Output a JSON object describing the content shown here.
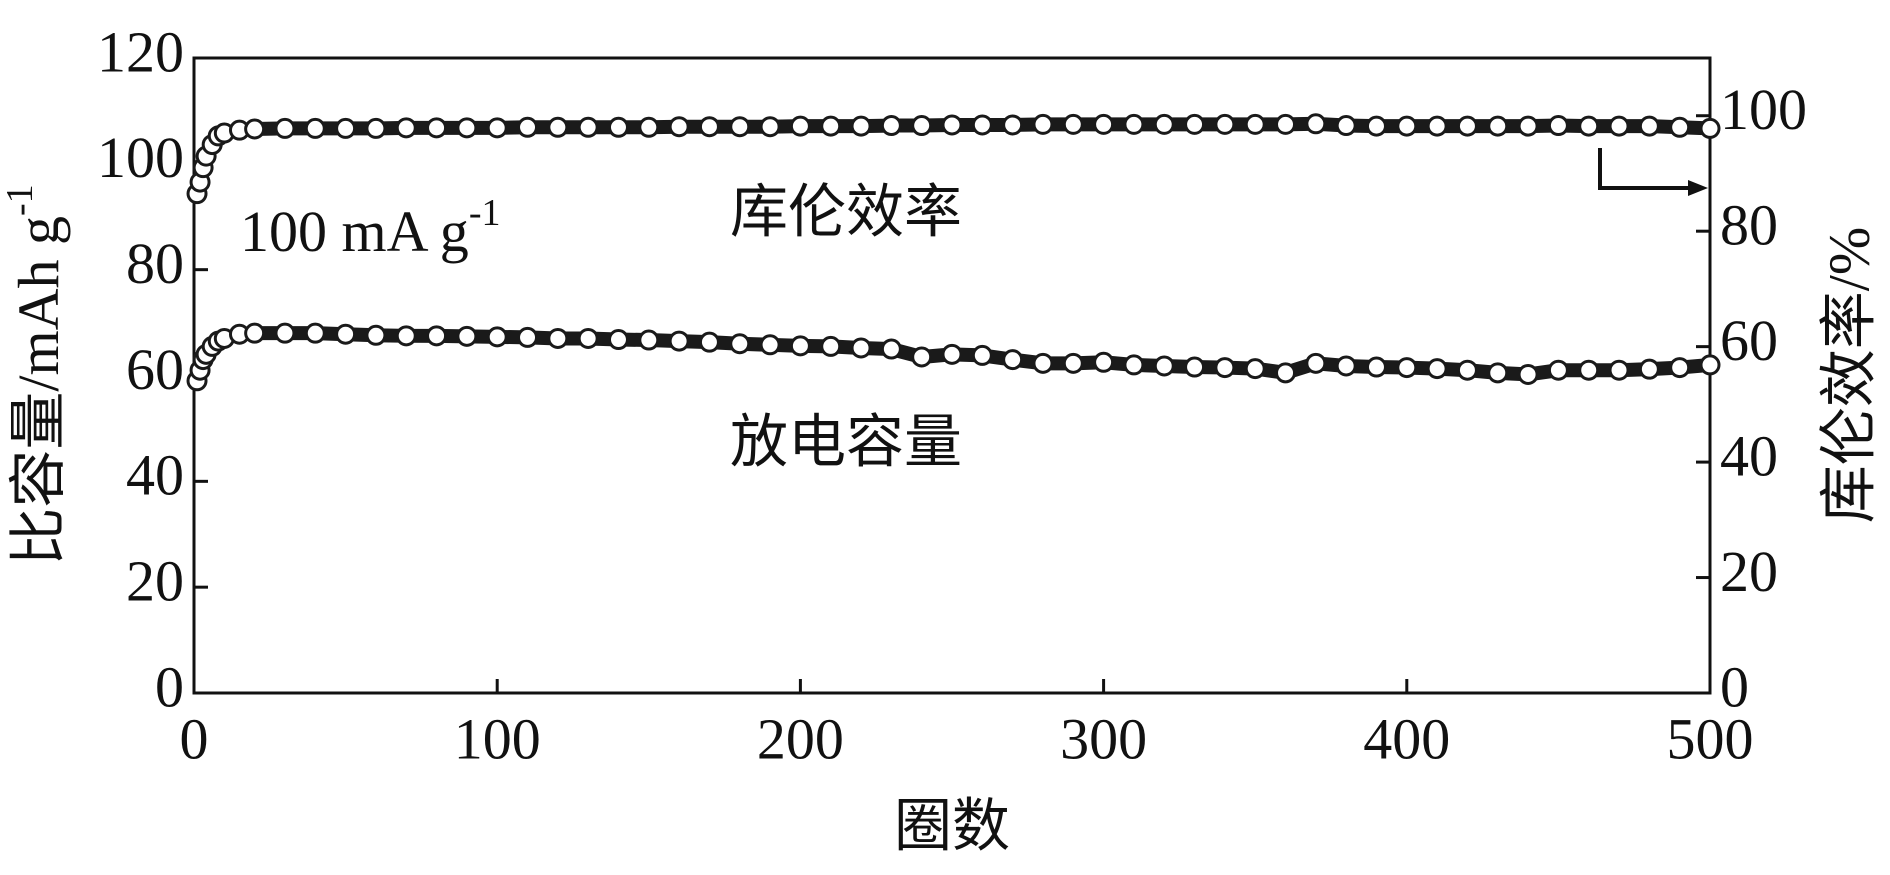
{
  "chart_data": {
    "type": "scatter",
    "x_label": "圈数",
    "y_label": "比容量/mAh g",
    "y_label_sup": "-1",
    "y2_label": "库伦效率/%",
    "current_label": "100 mA g",
    "current_label_sup": "-1",
    "x": [
      1,
      2,
      3,
      4,
      6,
      8,
      10,
      15,
      20,
      30,
      40,
      50,
      60,
      70,
      80,
      90,
      100,
      110,
      120,
      130,
      140,
      150,
      160,
      170,
      180,
      190,
      200,
      210,
      220,
      230,
      240,
      250,
      260,
      270,
      280,
      290,
      300,
      310,
      320,
      330,
      340,
      350,
      360,
      370,
      380,
      390,
      400,
      410,
      420,
      430,
      440,
      450,
      460,
      470,
      480,
      490,
      500
    ],
    "series": [
      {
        "name": "放电容量",
        "color": "#1a1a1a",
        "values": [
          59,
          61,
          63,
          64,
          65.5,
          66.5,
          67,
          67.8,
          68,
          68,
          68,
          67.8,
          67.6,
          67.5,
          67.5,
          67.4,
          67.3,
          67.2,
          67,
          67,
          66.8,
          66.7,
          66.5,
          66.3,
          66,
          65.8,
          65.6,
          65.5,
          65.2,
          65,
          63.5,
          64,
          63.8,
          63,
          62.3,
          62.3,
          62.5,
          62,
          61.8,
          61.6,
          61.5,
          61.3,
          60.5,
          62.3,
          61.8,
          61.6,
          61.5,
          61.3,
          61,
          60.5,
          60.2,
          61,
          61,
          61,
          61.2,
          61.5,
          62
        ]
      },
      {
        "name": "库伦效率",
        "color": "#1a1a1a",
        "axis": "y2",
        "values": [
          86.5,
          88.5,
          91,
          93,
          95,
          96.5,
          97,
          97.5,
          97.7,
          97.8,
          97.8,
          97.8,
          97.8,
          97.9,
          97.9,
          97.9,
          97.9,
          98,
          98,
          98,
          98,
          98,
          98.1,
          98.1,
          98.1,
          98.1,
          98.2,
          98.2,
          98.2,
          98.3,
          98.3,
          98.4,
          98.4,
          98.4,
          98.5,
          98.5,
          98.5,
          98.5,
          98.5,
          98.5,
          98.5,
          98.5,
          98.5,
          98.6,
          98.3,
          98.2,
          98.2,
          98.2,
          98.2,
          98.2,
          98.2,
          98.3,
          98.2,
          98.2,
          98.2,
          98,
          97.8
        ]
      }
    ],
    "xlim": [
      0,
      500
    ],
    "xticks": [
      0,
      100,
      200,
      300,
      400,
      500
    ],
    "ylim": [
      0,
      120
    ],
    "yticks": [
      0,
      20,
      40,
      60,
      80,
      100,
      120
    ],
    "y2lim": [
      0,
      110
    ],
    "y2ticks": [
      0,
      20,
      40,
      60,
      80,
      100
    ]
  }
}
